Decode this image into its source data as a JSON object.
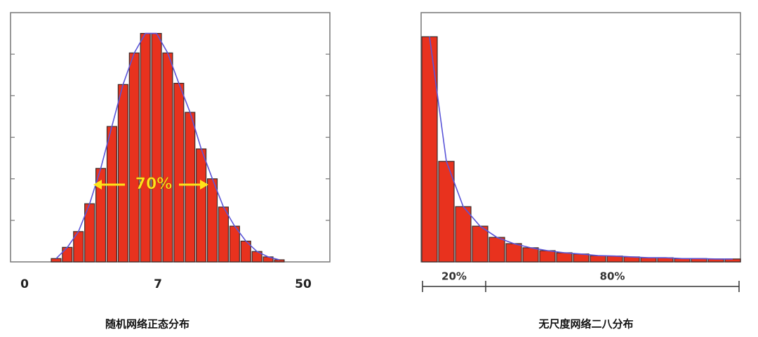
{
  "chart_data": [
    {
      "type": "bar",
      "caption": "随机网络正态分布",
      "annotation": "70%",
      "xlabels": [
        0,
        7,
        50
      ],
      "values": [
        0.08,
        0.35,
        0.73,
        1.4,
        2.25,
        3.26,
        4.27,
        5.03,
        5.5,
        5.5,
        5.03,
        4.3,
        3.6,
        2.72,
        2.0,
        1.32,
        0.86,
        0.5,
        0.25,
        0.12,
        0.05
      ],
      "color": "#e8321e",
      "curve_color": "#5a55d8",
      "ylim": [
        0,
        6
      ],
      "yticks": [
        1,
        2,
        3,
        4,
        5
      ]
    },
    {
      "type": "bar",
      "caption": "无尺度网络二八分布",
      "segments": [
        "20%",
        "80%"
      ],
      "values": [
        5.42,
        2.42,
        1.33,
        0.86,
        0.59,
        0.44,
        0.34,
        0.27,
        0.22,
        0.19,
        0.15,
        0.14,
        0.12,
        0.1,
        0.1,
        0.08,
        0.08,
        0.07,
        0.07
      ],
      "color": "#e8321e",
      "curve_color": "#5a55d8",
      "ylim": [
        0,
        6
      ],
      "yticks": [
        1,
        2,
        3,
        4,
        5
      ]
    }
  ]
}
